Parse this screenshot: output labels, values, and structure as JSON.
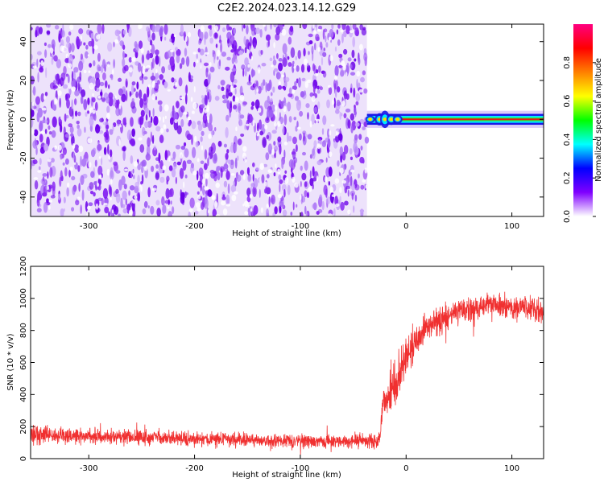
{
  "title": "C2E2.2024.023.14.12.G29",
  "chart_data": [
    {
      "type": "heatmap",
      "xlabel": "Height of straight line (km)",
      "ylabel": "Frequency (Hz)",
      "xlim": [
        -355,
        130
      ],
      "ylim": [
        -50,
        49
      ],
      "xticks": [
        -300,
        -200,
        -100,
        0,
        100
      ],
      "yticks": [
        -40,
        -20,
        0,
        20,
        40
      ],
      "noise_region_x": [
        -355,
        -37
      ],
      "signal_band": {
        "x": [
          -37,
          130
        ],
        "center_frequency": 0,
        "half_width": 2
      },
      "colorbar": {
        "label": "Normalized spectral amplitude",
        "range": [
          0,
          1
        ],
        "ticks": [
          0.0,
          0.2,
          0.4,
          0.6,
          0.8
        ],
        "colors": [
          "#ffffff",
          "#8000ff",
          "#0000ff",
          "#00ffff",
          "#00ff00",
          "#ffff00",
          "#ff8000",
          "#ff0000",
          "#ff0080"
        ]
      },
      "grid": false
    },
    {
      "type": "line",
      "xlabel": "Height of straight line (km)",
      "ylabel": "SNR (10 * v/v)",
      "xlim": [
        -355,
        130
      ],
      "ylim": [
        0,
        1200
      ],
      "xticks": [
        -300,
        -200,
        -100,
        0,
        100
      ],
      "yticks": [
        0,
        200,
        400,
        600,
        800,
        1000,
        1200
      ],
      "color": "#f03030",
      "series": [
        {
          "profile": [
            {
              "x": -355,
              "mean": 150,
              "spread": 90
            },
            {
              "x": -300,
              "mean": 140,
              "spread": 75
            },
            {
              "x": -200,
              "mean": 120,
              "spread": 65
            },
            {
              "x": -100,
              "mean": 110,
              "spread": 60
            },
            {
              "x": -25,
              "mean": 110,
              "spread": 70
            },
            {
              "x": -22,
              "mean": 330,
              "spread": 140
            },
            {
              "x": -15,
              "mean": 400,
              "spread": 180
            },
            {
              "x": -10,
              "mean": 480,
              "spread": 230
            },
            {
              "x": 0,
              "mean": 650,
              "spread": 170
            },
            {
              "x": 20,
              "mean": 830,
              "spread": 130
            },
            {
              "x": 50,
              "mean": 920,
              "spread": 110
            },
            {
              "x": 80,
              "mean": 960,
              "spread": 110
            },
            {
              "x": 100,
              "mean": 940,
              "spread": 110
            },
            {
              "x": 130,
              "mean": 920,
              "spread": 100
            }
          ]
        }
      ],
      "grid": false
    }
  ]
}
